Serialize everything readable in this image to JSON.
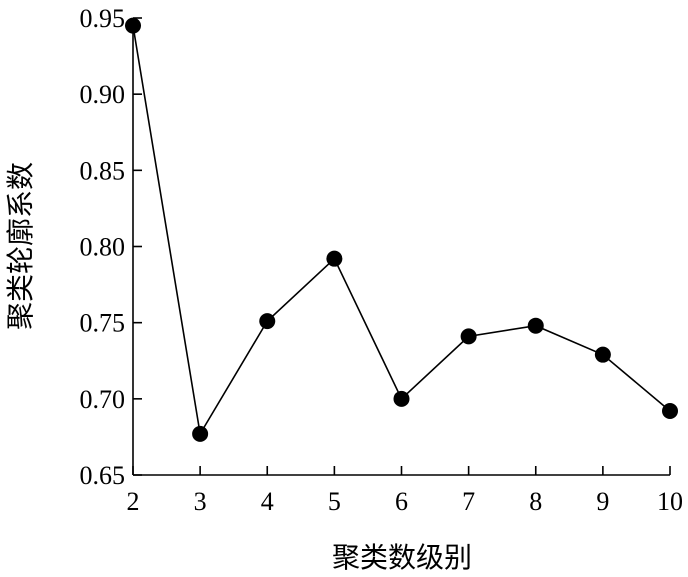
{
  "chart_data": {
    "type": "line",
    "xlabel": "聚类数级别",
    "ylabel": "聚类轮廓系数",
    "x": [
      2,
      3,
      4,
      5,
      6,
      7,
      8,
      9,
      10
    ],
    "y": [
      0.945,
      0.677,
      0.751,
      0.792,
      0.7,
      0.741,
      0.748,
      0.729,
      0.692
    ],
    "xticks": [
      2,
      3,
      4,
      5,
      6,
      7,
      8,
      9,
      10
    ],
    "xtick_labels": [
      "2",
      "3",
      "4",
      "5",
      "6",
      "7",
      "8",
      "9",
      "10"
    ],
    "yticks": [
      0.65,
      0.7,
      0.75,
      0.8,
      0.85,
      0.9,
      0.95
    ],
    "ytick_labels": [
      "0.65",
      "0.70",
      "0.75",
      "0.80",
      "0.85",
      "0.90",
      "0.95"
    ],
    "xlim": [
      2,
      10
    ],
    "ylim": [
      0.65,
      0.95
    ],
    "grid": false,
    "marker": "filled-circle",
    "line_color": "#000000",
    "marker_color": "#000000"
  }
}
